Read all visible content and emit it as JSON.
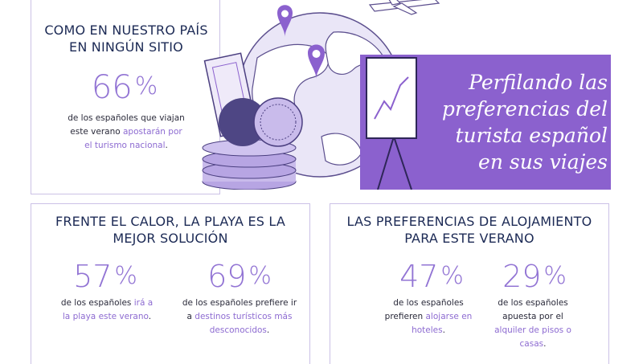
{
  "banner": {
    "title_lines": [
      "Perfilando las",
      "preferencias del",
      "turista español",
      "en sus viajes"
    ]
  },
  "section_national": {
    "title_line1": "COMO EN NUESTRO PAÍS",
    "title_line2": "EN NINGÚN SITIO",
    "stat_value": "66",
    "stat_symbol": "%",
    "desc_line1": "de los españoles que viajan",
    "desc_line2_plain": "este verano ",
    "desc_line2_hl": "apostarán por",
    "desc_line3_hl": "el turismo nacional",
    "desc_line3_end": "."
  },
  "section_beach": {
    "title_line1": "FRENTE EL CALOR, LA PLAYA ES LA",
    "title_line2": "MEJOR SOLUCIÓN",
    "stat1": {
      "value": "57",
      "symbol": "%",
      "line1_plain": "de los españoles ",
      "line1_hl": "irá a",
      "line2_hl": "la playa este verano",
      "line2_end": "."
    },
    "stat2": {
      "value": "69",
      "symbol": "%",
      "line1": "de los españoles prefiere ir",
      "line2_plain": "a ",
      "line2_hl": "destinos turísticos más",
      "line3_hl": "desconocidos",
      "line3_end": "."
    }
  },
  "section_lodging": {
    "title_line1": "LAS PREFERENCIAS DE ALOJAMIENTO",
    "title_line2": "PARA ESTE VERANO",
    "stat1": {
      "value": "47",
      "symbol": "%",
      "line1": "de los españoles",
      "line2_plain": "prefieren ",
      "line2_hl": "alojarse en",
      "line3_hl": "hoteles",
      "line3_end": "."
    },
    "stat2": {
      "value": "29",
      "symbol": "%",
      "line1": "de los españoles",
      "line2": "apuesta por el",
      "line3_hl": "alquiler de pisos o",
      "line4_hl": "casas",
      "line4_end": "."
    }
  },
  "colors": {
    "accent": "#8b61ce",
    "heading": "#1c2a55",
    "highlight": "#8d6bd1",
    "frame": "#cbc1e6"
  }
}
